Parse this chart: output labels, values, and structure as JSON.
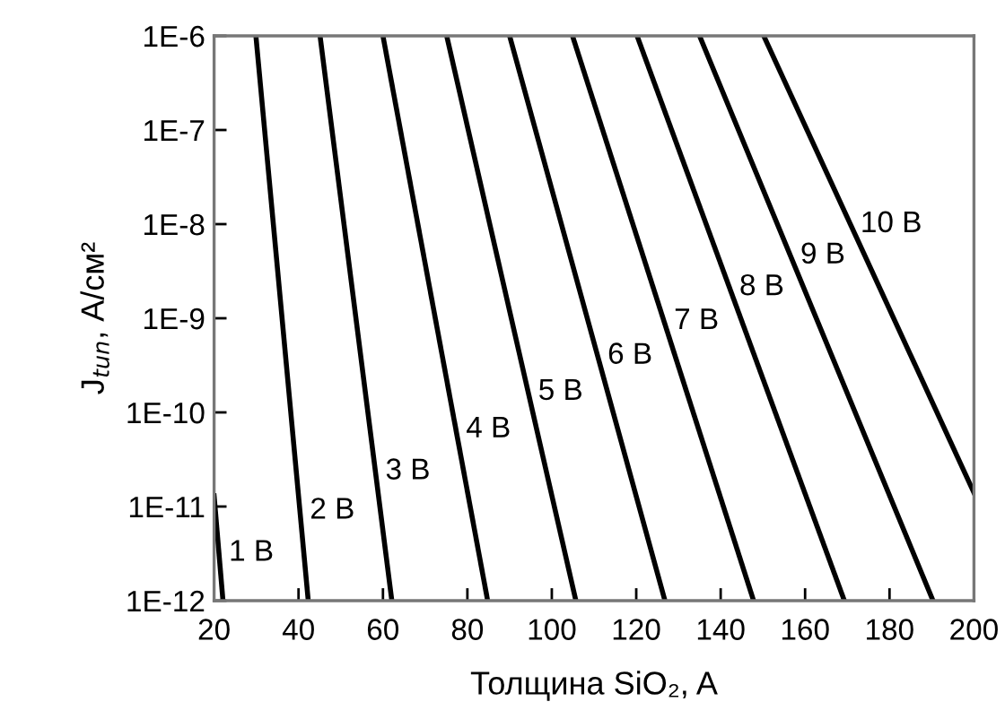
{
  "chart_data": {
    "type": "line",
    "xlabel": "Толщина SiO₂, A",
    "ylabel": "J$_{tun}$, A/см²",
    "log": "y",
    "grid": false,
    "marker": "none",
    "line_style": "solid",
    "xlim": [
      20,
      200
    ],
    "xticks": [
      20,
      40,
      60,
      80,
      100,
      120,
      140,
      160,
      180,
      200
    ],
    "ylim": [
      1e-12,
      1e-06
    ],
    "yticks": [
      {
        "value": 1e-12,
        "label": "1E-12"
      },
      {
        "value": 1e-11,
        "label": "1E-11"
      },
      {
        "value": 1e-10,
        "label": "1E-10"
      },
      {
        "value": 1e-09,
        "label": "1E-9"
      },
      {
        "value": 1e-08,
        "label": "1E-8"
      },
      {
        "value": 1e-07,
        "label": "1E-7"
      },
      {
        "value": 1e-06,
        "label": "1E-6"
      }
    ],
    "series": [
      {
        "name": "1 B",
        "color": "#000000",
        "x": [
          20,
          22.1
        ],
        "values": [
          1.3e-11,
          1e-12
        ]
      },
      {
        "name": "2 B",
        "color": "#000000",
        "x": [
          29.9,
          42.3
        ],
        "values": [
          1e-06,
          1e-12
        ]
      },
      {
        "name": "3 B",
        "color": "#000000",
        "x": [
          45.1,
          62.1
        ],
        "values": [
          1e-06,
          1e-12
        ]
      },
      {
        "name": "4 B",
        "color": "#000000",
        "x": [
          60,
          84.8
        ],
        "values": [
          1e-06,
          1e-12
        ]
      },
      {
        "name": "5 B",
        "color": "#000000",
        "x": [
          75.1,
          105.7
        ],
        "values": [
          1e-06,
          1e-12
        ]
      },
      {
        "name": "6 B",
        "color": "#000000",
        "x": [
          90,
          126.8
        ],
        "values": [
          1e-06,
          1e-12
        ]
      },
      {
        "name": "7 B",
        "color": "#000000",
        "x": [
          104.9,
          147.8
        ],
        "values": [
          1e-06,
          1e-12
        ]
      },
      {
        "name": "8 B",
        "color": "#000000",
        "x": [
          120.2,
          169.3
        ],
        "values": [
          1e-06,
          1e-12
        ]
      },
      {
        "name": "9 B",
        "color": "#000000",
        "x": [
          135,
          190.3
        ],
        "values": [
          1e-06,
          1e-12
        ]
      },
      {
        "name": "10 B",
        "color": "#000000",
        "x": [
          150.2,
          200
        ],
        "values": [
          1e-06,
          1.4e-11
        ]
      }
    ]
  }
}
